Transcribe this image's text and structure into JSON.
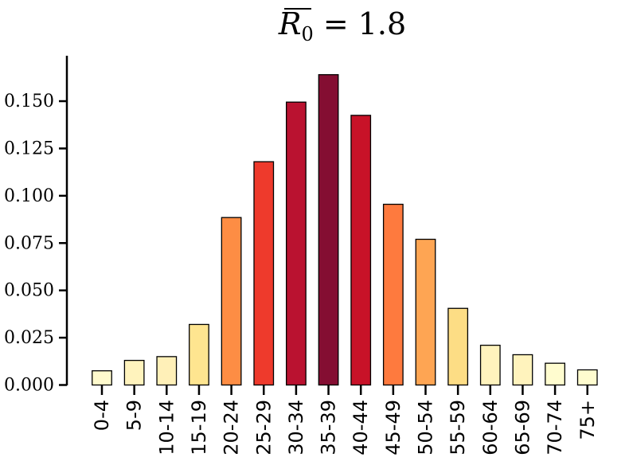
{
  "chart_data": {
    "type": "bar",
    "title_symbol": "R",
    "title_subscript": "0",
    "title_rest": " = 1.8",
    "categories": [
      "0-4",
      "5-9",
      "10-14",
      "15-19",
      "20-24",
      "25-29",
      "30-34",
      "35-39",
      "40-44",
      "45-49",
      "50-54",
      "55-59",
      "60-64",
      "65-69",
      "70-74",
      "75+"
    ],
    "values": [
      0.0075,
      0.013,
      0.015,
      0.032,
      0.0885,
      0.118,
      0.1495,
      0.164,
      0.1425,
      0.0955,
      0.077,
      0.0405,
      0.021,
      0.016,
      0.0115,
      0.008
    ],
    "colors": [
      "#fffacd",
      "#fff3bd",
      "#fff0b8",
      "#fee590",
      "#fd8d44",
      "#ee3a2c",
      "#ba1230",
      "#840e32",
      "#c81228",
      "#fe7a3e",
      "#fea553",
      "#fddd85",
      "#fff3bd",
      "#fff3bd",
      "#fffccf",
      "#fffccf"
    ],
    "yticks": [
      "0.000",
      "0.025",
      "0.050",
      "0.075",
      "0.100",
      "0.125",
      "0.150"
    ],
    "ylim": [
      0,
      0.174
    ],
    "grid": false
  }
}
